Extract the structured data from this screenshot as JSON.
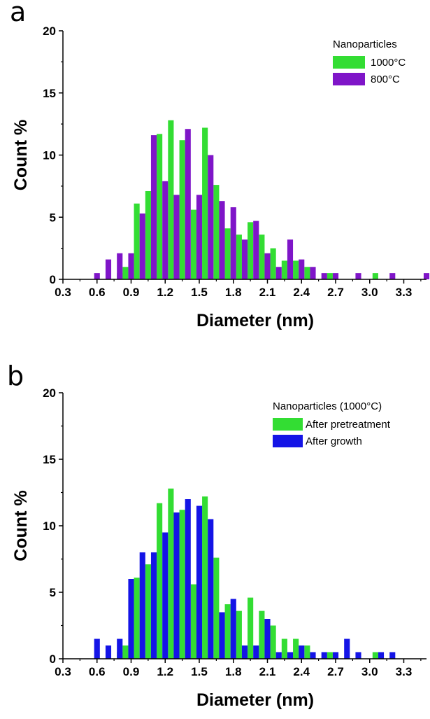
{
  "chart_data": [
    {
      "type": "bar",
      "panel_label": "a",
      "xlabel": "Diameter (nm)",
      "ylabel": "Count %",
      "xlim": [
        0.3,
        3.5
      ],
      "ylim": [
        0,
        20
      ],
      "xticks": [
        "0.3",
        "0.6",
        "0.9",
        "1.2",
        "1.5",
        "1.8",
        "2.1",
        "2.4",
        "2.7",
        "3.0",
        "3.3"
      ],
      "yticks": [
        "0",
        "5",
        "10",
        "15",
        "20"
      ],
      "legend": {
        "title": "Nanoparticles",
        "placement": "top-right"
      },
      "bar_width": 0.05,
      "series": [
        {
          "name": "1000°C",
          "color": "#33dd33",
          "points": [
            {
              "x": 0.8,
              "y": 0.5
            },
            {
              "x": 0.85,
              "y": 1.0
            },
            {
              "x": 0.95,
              "y": 6.1
            },
            {
              "x": 1.05,
              "y": 7.1
            },
            {
              "x": 1.15,
              "y": 11.7
            },
            {
              "x": 1.25,
              "y": 12.8
            },
            {
              "x": 1.35,
              "y": 11.2
            },
            {
              "x": 1.45,
              "y": 5.6
            },
            {
              "x": 1.55,
              "y": 12.2
            },
            {
              "x": 1.65,
              "y": 7.6
            },
            {
              "x": 1.75,
              "y": 4.1
            },
            {
              "x": 1.85,
              "y": 3.6
            },
            {
              "x": 1.95,
              "y": 4.6
            },
            {
              "x": 2.05,
              "y": 3.6
            },
            {
              "x": 2.15,
              "y": 2.5
            },
            {
              "x": 2.25,
              "y": 1.5
            },
            {
              "x": 2.35,
              "y": 1.5
            },
            {
              "x": 2.45,
              "y": 1.0
            },
            {
              "x": 2.65,
              "y": 0.5
            },
            {
              "x": 3.05,
              "y": 0.5
            }
          ]
        },
        {
          "name": "800°C",
          "color": "#7f15c8",
          "points": [
            {
              "x": 0.6,
              "y": 0.5
            },
            {
              "x": 0.7,
              "y": 1.6
            },
            {
              "x": 0.8,
              "y": 2.1
            },
            {
              "x": 0.9,
              "y": 2.1
            },
            {
              "x": 1.0,
              "y": 5.3
            },
            {
              "x": 1.1,
              "y": 11.6
            },
            {
              "x": 1.2,
              "y": 7.9
            },
            {
              "x": 1.3,
              "y": 6.8
            },
            {
              "x": 1.4,
              "y": 12.1
            },
            {
              "x": 1.5,
              "y": 6.8
            },
            {
              "x": 1.6,
              "y": 10.0
            },
            {
              "x": 1.7,
              "y": 6.3
            },
            {
              "x": 1.8,
              "y": 5.8
            },
            {
              "x": 1.9,
              "y": 3.2
            },
            {
              "x": 2.0,
              "y": 4.7
            },
            {
              "x": 2.1,
              "y": 2.1
            },
            {
              "x": 2.2,
              "y": 1.0
            },
            {
              "x": 2.3,
              "y": 3.2
            },
            {
              "x": 2.4,
              "y": 1.6
            },
            {
              "x": 2.5,
              "y": 1.0
            },
            {
              "x": 2.6,
              "y": 0.5
            },
            {
              "x": 2.7,
              "y": 0.5
            },
            {
              "x": 2.9,
              "y": 0.5
            },
            {
              "x": 3.2,
              "y": 0.5
            },
            {
              "x": 3.5,
              "y": 0.5
            }
          ]
        }
      ]
    },
    {
      "type": "bar",
      "panel_label": "b",
      "xlabel": "Diameter (nm)",
      "ylabel": "Count %",
      "xlim": [
        0.3,
        3.5
      ],
      "ylim": [
        0,
        20
      ],
      "xticks": [
        "0.3",
        "0.6",
        "0.9",
        "1.2",
        "1.5",
        "1.8",
        "2.1",
        "2.4",
        "2.7",
        "3.0",
        "3.3"
      ],
      "yticks": [
        "0",
        "5",
        "10",
        "15",
        "20"
      ],
      "legend": {
        "title": "Nanoparticles (1000°C)",
        "placement": "top-right"
      },
      "bar_width": 0.05,
      "series": [
        {
          "name": "After pretreatment",
          "color": "#33dd33",
          "points": [
            {
              "x": 0.8,
              "y": 0.5
            },
            {
              "x": 0.85,
              "y": 1.0
            },
            {
              "x": 0.95,
              "y": 6.1
            },
            {
              "x": 1.05,
              "y": 7.1
            },
            {
              "x": 1.15,
              "y": 11.7
            },
            {
              "x": 1.25,
              "y": 12.8
            },
            {
              "x": 1.35,
              "y": 11.2
            },
            {
              "x": 1.45,
              "y": 5.6
            },
            {
              "x": 1.55,
              "y": 12.2
            },
            {
              "x": 1.65,
              "y": 7.6
            },
            {
              "x": 1.75,
              "y": 4.1
            },
            {
              "x": 1.85,
              "y": 3.6
            },
            {
              "x": 1.95,
              "y": 4.6
            },
            {
              "x": 2.05,
              "y": 3.6
            },
            {
              "x": 2.15,
              "y": 2.5
            },
            {
              "x": 2.25,
              "y": 1.5
            },
            {
              "x": 2.35,
              "y": 1.5
            },
            {
              "x": 2.45,
              "y": 1.0
            },
            {
              "x": 2.65,
              "y": 0.5
            },
            {
              "x": 3.05,
              "y": 0.5
            }
          ]
        },
        {
          "name": "After growth",
          "color": "#1414e6",
          "points": [
            {
              "x": 0.6,
              "y": 1.5
            },
            {
              "x": 0.7,
              "y": 1.0
            },
            {
              "x": 0.8,
              "y": 1.5
            },
            {
              "x": 0.9,
              "y": 6.0
            },
            {
              "x": 1.0,
              "y": 8.0
            },
            {
              "x": 1.1,
              "y": 8.0
            },
            {
              "x": 1.2,
              "y": 9.5
            },
            {
              "x": 1.3,
              "y": 11.0
            },
            {
              "x": 1.4,
              "y": 12.0
            },
            {
              "x": 1.5,
              "y": 11.5
            },
            {
              "x": 1.6,
              "y": 10.5
            },
            {
              "x": 1.7,
              "y": 3.5
            },
            {
              "x": 1.8,
              "y": 4.5
            },
            {
              "x": 1.9,
              "y": 1.0
            },
            {
              "x": 2.0,
              "y": 1.0
            },
            {
              "x": 2.1,
              "y": 3.0
            },
            {
              "x": 2.2,
              "y": 0.5
            },
            {
              "x": 2.3,
              "y": 0.5
            },
            {
              "x": 2.4,
              "y": 1.0
            },
            {
              "x": 2.5,
              "y": 0.5
            },
            {
              "x": 2.6,
              "y": 0.5
            },
            {
              "x": 2.7,
              "y": 0.5
            },
            {
              "x": 2.8,
              "y": 1.5
            },
            {
              "x": 2.9,
              "y": 0.5
            },
            {
              "x": 3.1,
              "y": 0.5
            },
            {
              "x": 3.2,
              "y": 0.5
            }
          ]
        }
      ]
    }
  ]
}
